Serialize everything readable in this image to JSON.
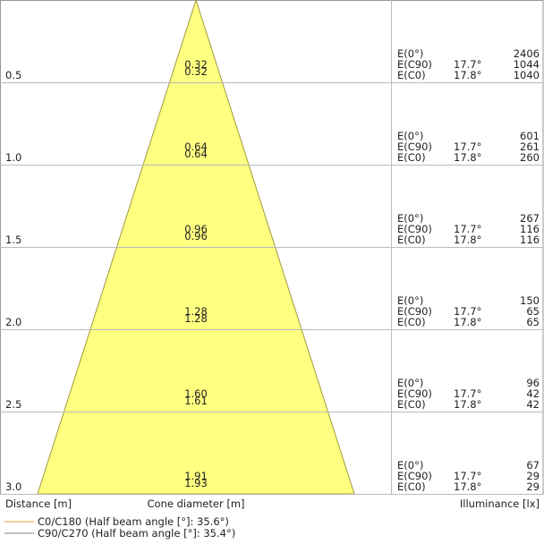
{
  "rows": [
    {
      "distance": "0.5",
      "diameters": [
        "0.32",
        "0.32"
      ],
      "illuminance": [
        {
          "label": "E(0°)",
          "value": 2406
        },
        {
          "label": "E(C90)",
          "angle": "17.7°",
          "value": 1044
        },
        {
          "label": "E(C0)",
          "angle": "17.8°",
          "value": 1040
        }
      ]
    },
    {
      "distance": "1.0",
      "diameters": [
        "0.64",
        "0.64"
      ],
      "illuminance": [
        {
          "label": "E(0°)",
          "value": 601
        },
        {
          "label": "E(C90)",
          "angle": "17.7°",
          "value": 261
        },
        {
          "label": "E(C0)",
          "angle": "17.8°",
          "value": 260
        }
      ]
    },
    {
      "distance": "1.5",
      "diameters": [
        "0.96",
        "0.96"
      ],
      "illuminance": [
        {
          "label": "E(0°)",
          "value": 267
        },
        {
          "label": "E(C90)",
          "angle": "17.7°",
          "value": 116
        },
        {
          "label": "E(C0)",
          "angle": "17.8°",
          "value": 116
        }
      ]
    },
    {
      "distance": "2.0",
      "diameters": [
        "1.28",
        "1.28"
      ],
      "illuminance": [
        {
          "label": "E(0°)",
          "value": 150
        },
        {
          "label": "E(C90)",
          "angle": "17.7°",
          "value": 65
        },
        {
          "label": "E(C0)",
          "angle": "17.8°",
          "value": 65
        }
      ]
    },
    {
      "distance": "2.5",
      "diameters": [
        "1.60",
        "1.61"
      ],
      "illuminance": [
        {
          "label": "E(0°)",
          "value": 96
        },
        {
          "label": "E(C90)",
          "angle": "17.7°",
          "value": 42
        },
        {
          "label": "E(C0)",
          "angle": "17.8°",
          "value": 42
        }
      ]
    },
    {
      "distance": "3.0",
      "diameters": [
        "1.91",
        "1.93"
      ],
      "illuminance": [
        {
          "label": "E(0°)",
          "value": 67
        },
        {
          "label": "E(C90)",
          "angle": "17.7°",
          "value": 29
        },
        {
          "label": "E(C0)",
          "angle": "17.8°",
          "value": 29
        }
      ]
    }
  ],
  "footer": {
    "distance": "Distance [m]",
    "diameter": "Cone diameter [m]",
    "illuminance": "Illuminance [lx]"
  },
  "legend": [
    "C0/C180 (Half beam angle [°]: 35.6°)",
    "C90/C270 (Half beam angle [°]: 35.4°)"
  ]
}
